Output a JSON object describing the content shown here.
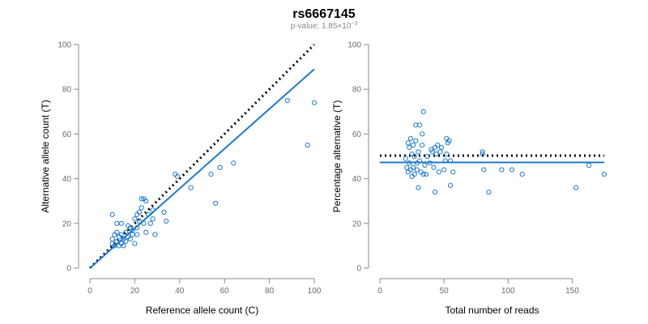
{
  "chart_data": [
    {
      "type": "scatter",
      "title": "rs6667145",
      "subtitle_prefix": "p-value: 1.85×10",
      "subtitle_exp": "−3",
      "xlabel": "Reference allele count (C)",
      "ylabel": "Alternative allele count (T)",
      "xlim": [
        0,
        100
      ],
      "ylim": [
        0,
        100
      ],
      "xticks": [
        0,
        20,
        40,
        60,
        80,
        100
      ],
      "yticks": [
        0,
        20,
        40,
        60,
        80,
        100
      ],
      "point_color": "#1f78c8",
      "fit_color": "#1f78c8",
      "reference_line_color": "#000000",
      "reference_line": {
        "x": [
          0,
          100
        ],
        "y": [
          0,
          100
        ]
      },
      "fit_line": {
        "x": [
          0,
          100
        ],
        "y": [
          0,
          89
        ]
      },
      "points": [
        {
          "x": 10,
          "y": 24
        },
        {
          "x": 10,
          "y": 13
        },
        {
          "x": 10,
          "y": 11
        },
        {
          "x": 11,
          "y": 10
        },
        {
          "x": 11,
          "y": 15
        },
        {
          "x": 12,
          "y": 20
        },
        {
          "x": 12,
          "y": 16
        },
        {
          "x": 12,
          "y": 12
        },
        {
          "x": 13,
          "y": 10
        },
        {
          "x": 13,
          "y": 14
        },
        {
          "x": 14,
          "y": 11
        },
        {
          "x": 14,
          "y": 20
        },
        {
          "x": 14,
          "y": 15
        },
        {
          "x": 15,
          "y": 13
        },
        {
          "x": 15,
          "y": 10
        },
        {
          "x": 16,
          "y": 12
        },
        {
          "x": 16,
          "y": 16
        },
        {
          "x": 17,
          "y": 19
        },
        {
          "x": 17,
          "y": 14
        },
        {
          "x": 18,
          "y": 13
        },
        {
          "x": 18,
          "y": 18
        },
        {
          "x": 19,
          "y": 17
        },
        {
          "x": 19,
          "y": 15
        },
        {
          "x": 20,
          "y": 11
        },
        {
          "x": 20,
          "y": 22
        },
        {
          "x": 21,
          "y": 18
        },
        {
          "x": 21,
          "y": 24
        },
        {
          "x": 21,
          "y": 15
        },
        {
          "x": 22,
          "y": 25
        },
        {
          "x": 22,
          "y": 21
        },
        {
          "x": 23,
          "y": 31
        },
        {
          "x": 23,
          "y": 27
        },
        {
          "x": 24,
          "y": 20
        },
        {
          "x": 24,
          "y": 31
        },
        {
          "x": 25,
          "y": 30
        },
        {
          "x": 25,
          "y": 16
        },
        {
          "x": 26,
          "y": 24
        },
        {
          "x": 27,
          "y": 20
        },
        {
          "x": 28,
          "y": 26
        },
        {
          "x": 28,
          "y": 22
        },
        {
          "x": 29,
          "y": 15
        },
        {
          "x": 33,
          "y": 25
        },
        {
          "x": 34,
          "y": 21
        },
        {
          "x": 38,
          "y": 42
        },
        {
          "x": 39,
          "y": 41
        },
        {
          "x": 45,
          "y": 36
        },
        {
          "x": 54,
          "y": 42
        },
        {
          "x": 56,
          "y": 29
        },
        {
          "x": 58,
          "y": 45
        },
        {
          "x": 64,
          "y": 47
        },
        {
          "x": 88,
          "y": 75
        },
        {
          "x": 97,
          "y": 55
        },
        {
          "x": 100,
          "y": 74
        }
      ]
    },
    {
      "type": "scatter",
      "xlabel": "Total number of reads",
      "ylabel": "Percentage alternative (T)",
      "xlim": [
        0,
        175
      ],
      "ylim": [
        0,
        100
      ],
      "xticks": [
        0,
        50,
        100,
        150
      ],
      "yticks": [
        0,
        20,
        40,
        60,
        80,
        100
      ],
      "point_color": "#1f78c8",
      "fit_color": "#1f78c8",
      "reference_line_color": "#000000",
      "reference_line": {
        "x": [
          0,
          175
        ],
        "y": [
          50.3,
          50.3
        ]
      },
      "fit_line": {
        "x": [
          0,
          175
        ],
        "y": [
          47.3,
          47.3
        ]
      },
      "points": [
        {
          "x": 20,
          "y": 49
        },
        {
          "x": 21,
          "y": 45
        },
        {
          "x": 22,
          "y": 43
        },
        {
          "x": 22,
          "y": 56
        },
        {
          "x": 23,
          "y": 54
        },
        {
          "x": 23,
          "y": 47
        },
        {
          "x": 24,
          "y": 58
        },
        {
          "x": 24,
          "y": 44
        },
        {
          "x": 25,
          "y": 41
        },
        {
          "x": 25,
          "y": 51
        },
        {
          "x": 26,
          "y": 55
        },
        {
          "x": 26,
          "y": 45
        },
        {
          "x": 27,
          "y": 50
        },
        {
          "x": 27,
          "y": 42
        },
        {
          "x": 28,
          "y": 57
        },
        {
          "x": 28,
          "y": 64
        },
        {
          "x": 29,
          "y": 47
        },
        {
          "x": 29,
          "y": 44
        },
        {
          "x": 30,
          "y": 36
        },
        {
          "x": 30,
          "y": 52
        },
        {
          "x": 31,
          "y": 64
        },
        {
          "x": 31,
          "y": 48
        },
        {
          "x": 32,
          "y": 43
        },
        {
          "x": 33,
          "y": 60
        },
        {
          "x": 33,
          "y": 55
        },
        {
          "x": 34,
          "y": 70
        },
        {
          "x": 34,
          "y": 42
        },
        {
          "x": 35,
          "y": 46
        },
        {
          "x": 36,
          "y": 42
        },
        {
          "x": 37,
          "y": 50
        },
        {
          "x": 39,
          "y": 47
        },
        {
          "x": 40,
          "y": 53
        },
        {
          "x": 41,
          "y": 52
        },
        {
          "x": 42,
          "y": 45
        },
        {
          "x": 43,
          "y": 54
        },
        {
          "x": 43,
          "y": 34
        },
        {
          "x": 44,
          "y": 51
        },
        {
          "x": 45,
          "y": 55
        },
        {
          "x": 46,
          "y": 43
        },
        {
          "x": 47,
          "y": 52
        },
        {
          "x": 48,
          "y": 54
        },
        {
          "x": 50,
          "y": 44
        },
        {
          "x": 51,
          "y": 48
        },
        {
          "x": 52,
          "y": 58
        },
        {
          "x": 52,
          "y": 51
        },
        {
          "x": 53,
          "y": 56
        },
        {
          "x": 54,
          "y": 57
        },
        {
          "x": 55,
          "y": 48
        },
        {
          "x": 55,
          "y": 37
        },
        {
          "x": 57,
          "y": 43
        },
        {
          "x": 80,
          "y": 52
        },
        {
          "x": 80,
          "y": 51
        },
        {
          "x": 81,
          "y": 44
        },
        {
          "x": 85,
          "y": 34
        },
        {
          "x": 95,
          "y": 44
        },
        {
          "x": 103,
          "y": 44
        },
        {
          "x": 111,
          "y": 42
        },
        {
          "x": 153,
          "y": 36
        },
        {
          "x": 163,
          "y": 46
        },
        {
          "x": 175,
          "y": 42
        }
      ]
    }
  ]
}
